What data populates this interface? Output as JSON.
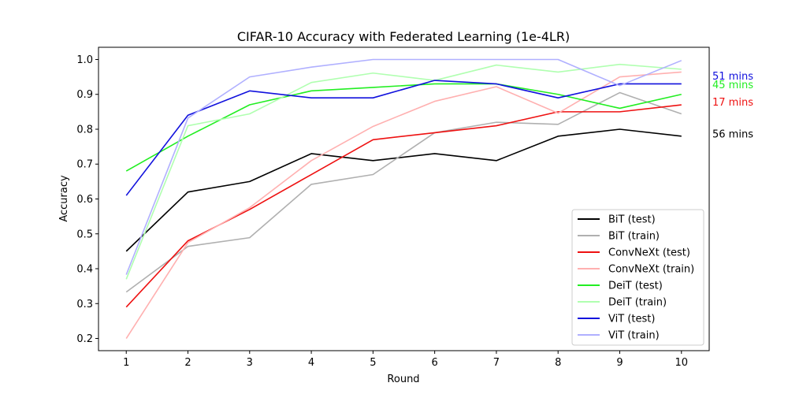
{
  "chart_data": {
    "type": "line",
    "title": "CIFAR-10 Accuracy with Federated Learning (1e-4LR)",
    "xlabel": "Round",
    "ylabel": "Accuracy",
    "x": [
      1,
      2,
      3,
      4,
      5,
      6,
      7,
      8,
      9,
      10
    ],
    "xlim": [
      0.55,
      10.45
    ],
    "ylim": [
      0.165,
      1.035
    ],
    "yticks": [
      "0.2",
      "0.3",
      "0.4",
      "0.5",
      "0.6",
      "0.7",
      "0.8",
      "0.9",
      "1.0"
    ],
    "ytick_values": [
      0.2,
      0.3,
      0.4,
      0.5,
      0.6,
      0.7,
      0.8,
      0.9,
      1.0
    ],
    "grid": false,
    "legend_position": "lower-right",
    "series": [
      {
        "name": "BiT (test)",
        "color": "#000000",
        "values": [
          0.45,
          0.62,
          0.65,
          0.73,
          0.71,
          0.73,
          0.71,
          0.78,
          0.8,
          0.78
        ]
      },
      {
        "name": "BiT (train)",
        "color": "#b0b0b0",
        "values": [
          0.333,
          0.464,
          0.489,
          0.642,
          0.67,
          0.79,
          0.82,
          0.814,
          0.905,
          0.844
        ]
      },
      {
        "name": "ConvNeXt (test)",
        "color": "#ee1111",
        "values": [
          0.29,
          0.48,
          0.57,
          0.67,
          0.77,
          0.79,
          0.81,
          0.85,
          0.85,
          0.87
        ]
      },
      {
        "name": "ConvNeXt (train)",
        "color": "#ffb0b0",
        "values": [
          0.2,
          0.475,
          0.575,
          0.71,
          0.808,
          0.88,
          0.922,
          0.846,
          0.95,
          0.964
        ]
      },
      {
        "name": "DeiT (test)",
        "color": "#22ee22",
        "values": [
          0.68,
          0.78,
          0.87,
          0.91,
          0.92,
          0.93,
          0.93,
          0.9,
          0.86,
          0.9
        ]
      },
      {
        "name": "DeiT (train)",
        "color": "#b0ffb0",
        "values": [
          0.37,
          0.81,
          0.844,
          0.934,
          0.961,
          0.94,
          0.984,
          0.964,
          0.986,
          0.972
        ]
      },
      {
        "name": "ViT (test)",
        "color": "#1111dd",
        "values": [
          0.61,
          0.84,
          0.91,
          0.89,
          0.89,
          0.94,
          0.93,
          0.89,
          0.93,
          0.93
        ]
      },
      {
        "name": "ViT (train)",
        "color": "#b0b0ff",
        "values": [
          0.383,
          0.832,
          0.95,
          0.978,
          1.0,
          1.0,
          1.0,
          1.0,
          0.925,
          0.997
        ]
      }
    ],
    "annotations": [
      {
        "text": "51 mins",
        "color": "#1111dd",
        "y": 0.953
      },
      {
        "text": "45 mins",
        "color": "#22ee22",
        "y": 0.928
      },
      {
        "text": "17 mins",
        "color": "#ee1111",
        "y": 0.878
      },
      {
        "text": "56 mins",
        "color": "#000000",
        "y": 0.786
      }
    ]
  }
}
